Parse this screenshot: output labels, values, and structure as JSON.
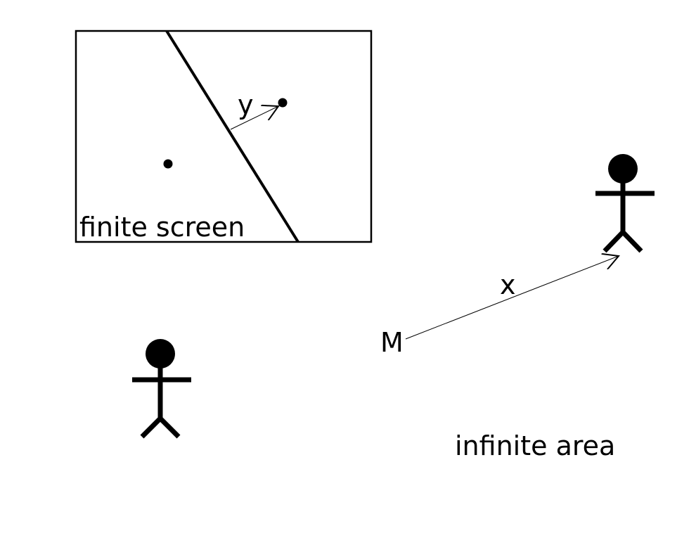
{
  "labels": {
    "screen": "finite screen",
    "area": "infinite area",
    "vector_x": "x",
    "vector_y": "y",
    "point_m": "M"
  },
  "colors": {
    "ink": "#000000",
    "background": "#ffffff"
  },
  "icons": [
    "stick-figure-icon",
    "stick-figure-icon"
  ]
}
